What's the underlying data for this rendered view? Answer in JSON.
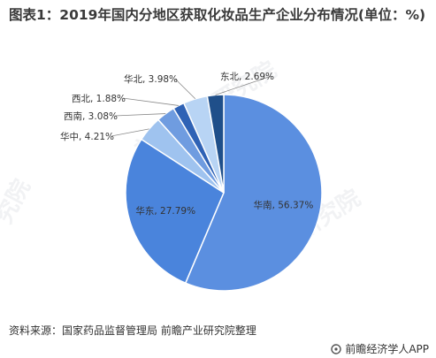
{
  "title": "图表1：2019年国内分地区获取化妆品生产企业分布情况(单位：%)",
  "source": "资料来源：国家药品监督管理局 前瞻产业研究院整理",
  "brand": "前瞻经济学人APP",
  "watermarks": [
    "前瞻产业研究院",
    "前瞻产业研究院",
    "究院"
  ],
  "chart_data": {
    "type": "pie",
    "slices": [
      {
        "name": "华南",
        "value": 56.37,
        "label": "华南, 56.37%",
        "color": "#5b8fe0"
      },
      {
        "name": "华东",
        "value": 27.79,
        "label": "华东, 27.79%",
        "color": "#4a84dc"
      },
      {
        "name": "华中",
        "value": 4.21,
        "label": "华中, 4.21%",
        "color": "#9fc3ef"
      },
      {
        "name": "西南",
        "value": 3.08,
        "label": "西南, 3.08%",
        "color": "#6f9ce0"
      },
      {
        "name": "西北",
        "value": 1.88,
        "label": "西北, 1.88%",
        "color": "#2f62b5"
      },
      {
        "name": "华北",
        "value": 3.98,
        "label": "华北, 3.98%",
        "color": "#b8d4f4"
      },
      {
        "name": "东北",
        "value": 2.69,
        "label": "东北, 2.69%",
        "color": "#1f4f8a"
      }
    ]
  }
}
